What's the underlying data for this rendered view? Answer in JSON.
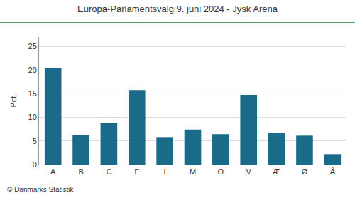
{
  "chart_data": {
    "type": "bar",
    "title": "Europa-Parlamentsvalg 9. juni 2024 - Jysk Arena",
    "ylabel": "Pct.",
    "annotations": [
      "© Danmarks Statistik"
    ],
    "categories": [
      "A",
      "B",
      "C",
      "F",
      "I",
      "M",
      "O",
      "V",
      "Æ",
      "Ø",
      "Å"
    ],
    "values": [
      20.4,
      6.2,
      8.7,
      15.7,
      5.8,
      7.4,
      6.4,
      14.7,
      6.6,
      6.1,
      2.2
    ],
    "color": "#1a6b8a",
    "ylim": [
      0,
      27
    ],
    "yticks": [
      0,
      5,
      10,
      15,
      20,
      25
    ],
    "grid": true
  }
}
